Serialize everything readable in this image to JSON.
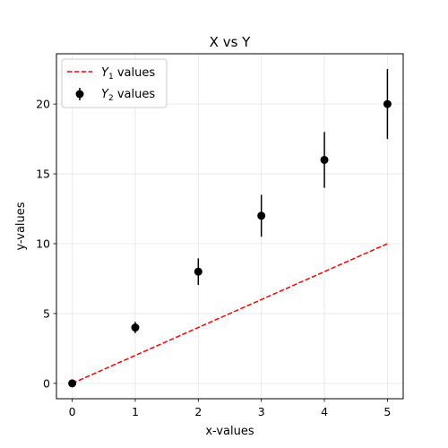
{
  "chart_data": {
    "type": "line",
    "title": "X vs Y",
    "xlabel": "x-values",
    "ylabel": "y-values",
    "xlim": [
      -0.25,
      5.25
    ],
    "ylim": [
      -1.1,
      23.6
    ],
    "xticks": [
      0,
      1,
      2,
      3,
      4,
      5
    ],
    "yticks": [
      0,
      5,
      10,
      15,
      20
    ],
    "grid": true,
    "legend_position": "top-left",
    "series": [
      {
        "name": "$Y_1$ values",
        "legend_main": "Y",
        "legend_sub": "1",
        "legend_suffix": " values",
        "style": "dashed-line",
        "color": "#ff0000",
        "x": [
          0,
          5
        ],
        "y": [
          0,
          10
        ]
      },
      {
        "name": "$Y_2$ values",
        "legend_main": "Y",
        "legend_sub": "2",
        "legend_suffix": " values",
        "style": "errorbar-markers",
        "color": "#000000",
        "x": [
          0,
          1,
          2,
          3,
          4,
          5
        ],
        "y": [
          0,
          4,
          8,
          12,
          16,
          20
        ],
        "yerr": [
          0,
          0.4,
          0.95,
          1.5,
          2.0,
          2.5
        ]
      }
    ]
  }
}
